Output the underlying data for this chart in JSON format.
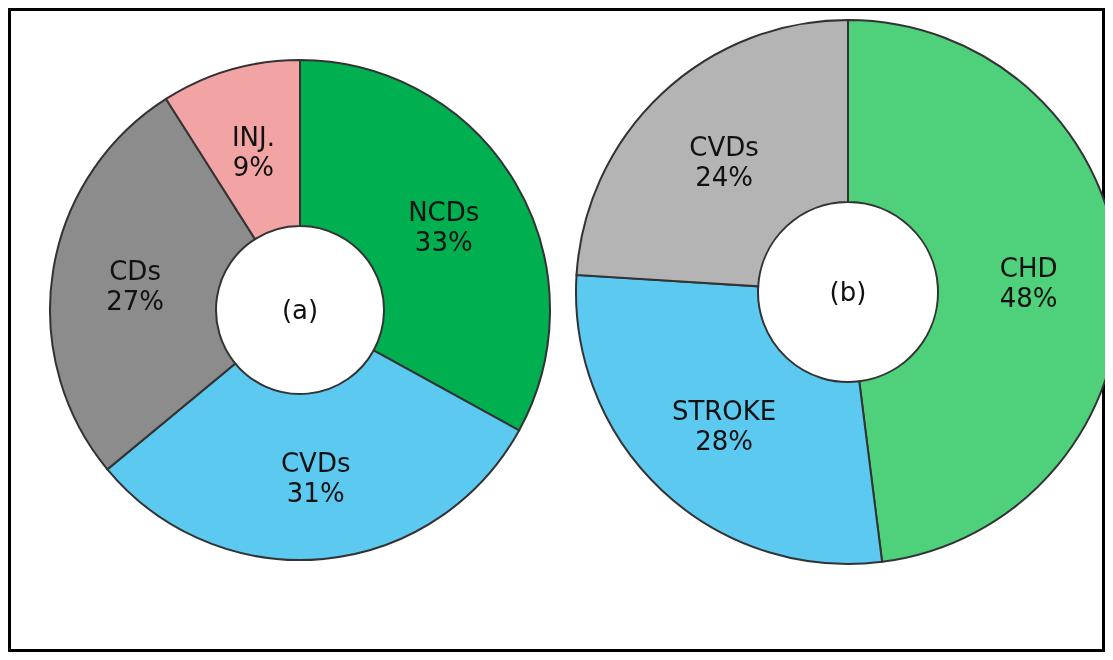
{
  "chart_data": [
    {
      "type": "donut",
      "title": "(a)",
      "categories": [
        "NCDs",
        "CVDs",
        "CDs",
        "INJ."
      ],
      "values": [
        33,
        31,
        27,
        9
      ],
      "value_labels": [
        "33%",
        "31%",
        "27%",
        "9%"
      ],
      "colors": [
        "#00b050",
        "#5ccaf0",
        "#8c8c8c",
        "#f2a3a3"
      ]
    },
    {
      "type": "donut",
      "title": "(b)",
      "categories": [
        "CHD",
        "STROKE",
        "CVDs"
      ],
      "values": [
        48,
        28,
        24
      ],
      "value_labels": [
        "48%",
        "28%",
        "24%"
      ],
      "colors": [
        "#4fd07a",
        "#5ccaf0",
        "#b4b4b4"
      ]
    }
  ]
}
